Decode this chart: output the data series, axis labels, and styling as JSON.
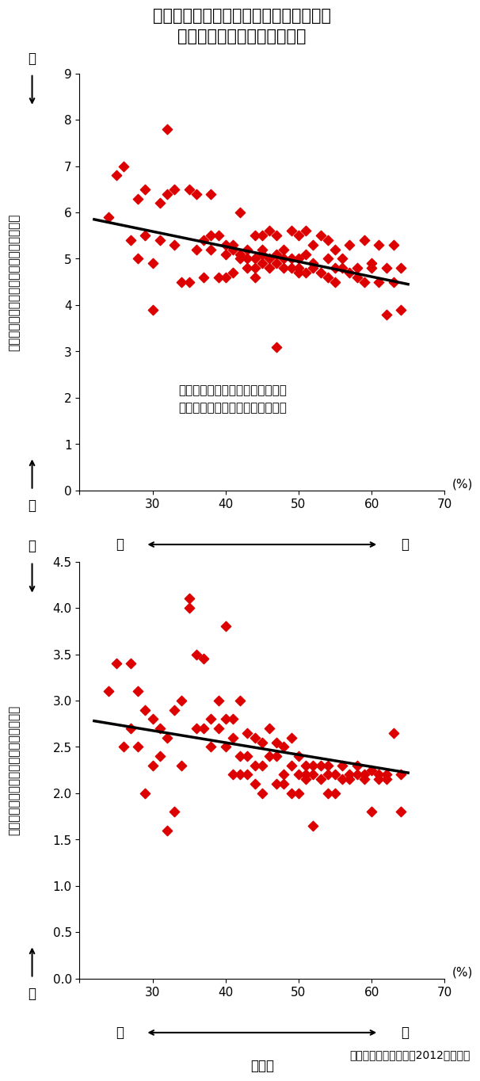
{
  "title": "ソーシャルキャピタル（信頼感）が高い\n行政区ほど健康状態がよい！",
  "title_fontsize": 16,
  "scatter1_x": [
    24,
    25,
    26,
    27,
    28,
    28,
    29,
    29,
    30,
    30,
    31,
    31,
    32,
    32,
    33,
    33,
    34,
    35,
    35,
    36,
    36,
    37,
    37,
    38,
    38,
    38,
    39,
    39,
    40,
    40,
    40,
    41,
    41,
    41,
    42,
    42,
    42,
    43,
    43,
    43,
    44,
    44,
    44,
    44,
    45,
    45,
    45,
    45,
    46,
    46,
    46,
    47,
    47,
    47,
    47,
    48,
    48,
    48,
    49,
    49,
    49,
    50,
    50,
    50,
    50,
    51,
    51,
    51,
    52,
    52,
    52,
    53,
    53,
    54,
    54,
    54,
    55,
    55,
    55,
    56,
    56,
    57,
    57,
    58,
    58,
    59,
    59,
    60,
    60,
    61,
    61,
    62,
    62,
    63,
    63,
    64,
    64
  ],
  "scatter1_y": [
    5.9,
    6.8,
    7.0,
    5.4,
    6.3,
    5.0,
    6.5,
    5.5,
    3.9,
    4.9,
    6.2,
    5.4,
    7.8,
    6.4,
    6.5,
    5.3,
    4.5,
    6.5,
    4.5,
    6.4,
    5.2,
    5.4,
    4.6,
    6.4,
    5.5,
    5.2,
    5.5,
    4.6,
    5.3,
    5.1,
    4.6,
    5.2,
    5.3,
    4.7,
    6.0,
    5.1,
    5.0,
    5.2,
    5.0,
    4.8,
    5.5,
    5.0,
    4.8,
    4.6,
    5.5,
    5.2,
    5.1,
    4.9,
    5.6,
    5.0,
    4.8,
    5.5,
    5.1,
    4.9,
    3.1,
    5.2,
    5.0,
    4.8,
    5.6,
    5.0,
    4.8,
    5.5,
    5.0,
    4.8,
    4.7,
    5.6,
    5.1,
    4.7,
    5.3,
    4.9,
    4.8,
    5.5,
    4.7,
    5.4,
    5.0,
    4.6,
    5.2,
    4.8,
    4.5,
    5.0,
    4.8,
    5.3,
    4.7,
    4.8,
    4.6,
    5.4,
    4.5,
    4.9,
    4.8,
    5.3,
    4.5,
    4.8,
    3.8,
    5.3,
    4.5,
    4.8,
    3.9
  ],
  "scatter1_trend_x": [
    22,
    65
  ],
  "scatter1_trend_y": [
    5.85,
    4.45
  ],
  "scatter2_x": [
    24,
    25,
    26,
    27,
    27,
    28,
    28,
    29,
    29,
    30,
    30,
    31,
    31,
    32,
    32,
    33,
    33,
    34,
    34,
    35,
    35,
    36,
    36,
    37,
    37,
    38,
    38,
    39,
    39,
    40,
    40,
    40,
    41,
    41,
    41,
    42,
    42,
    42,
    43,
    43,
    43,
    44,
    44,
    44,
    45,
    45,
    45,
    46,
    46,
    47,
    47,
    47,
    48,
    48,
    48,
    49,
    49,
    49,
    50,
    50,
    50,
    51,
    51,
    51,
    52,
    52,
    52,
    53,
    53,
    54,
    54,
    54,
    55,
    55,
    56,
    56,
    57,
    57,
    58,
    58,
    59,
    59,
    60,
    60,
    61,
    61,
    62,
    62,
    63,
    64,
    64
  ],
  "scatter2_y": [
    3.1,
    3.4,
    2.5,
    2.7,
    3.4,
    2.5,
    3.1,
    2.0,
    2.9,
    2.3,
    2.8,
    2.4,
    2.7,
    1.6,
    2.6,
    1.8,
    2.9,
    3.0,
    2.3,
    4.1,
    4.0,
    3.5,
    2.7,
    3.45,
    2.7,
    2.8,
    2.5,
    3.0,
    2.7,
    2.8,
    3.8,
    2.5,
    2.8,
    2.6,
    2.2,
    3.0,
    2.4,
    2.2,
    2.65,
    2.4,
    2.2,
    2.6,
    2.3,
    2.1,
    2.55,
    2.3,
    2.0,
    2.7,
    2.4,
    2.55,
    2.4,
    2.1,
    2.5,
    2.2,
    2.1,
    2.6,
    2.3,
    2.0,
    2.4,
    2.2,
    2.0,
    2.3,
    2.2,
    2.15,
    2.3,
    2.2,
    1.65,
    2.3,
    2.15,
    2.3,
    2.2,
    2.0,
    2.2,
    2.0,
    2.3,
    2.15,
    2.2,
    2.15,
    2.3,
    2.2,
    2.2,
    2.15,
    2.25,
    1.8,
    2.2,
    2.15,
    2.2,
    2.15,
    2.65,
    1.8,
    2.2
  ],
  "scatter2_trend_x": [
    22,
    65
  ],
  "scatter2_trend_y": [
    2.78,
    2.22
  ],
  "scatter_color": "#dd0000",
  "trend_color": "#000000",
  "ylabel1_kanji": "抑うつの平均得点（低いほど状態がよい）",
  "ylabel1_colored": "抑うつ",
  "ylabel1_color": "#4472c4",
  "ylabel2_kanji": "虚弱の平均得点（低いほど状態がよい）",
  "ylabel2_colored": "虚弱",
  "ylabel2_color": "#dd0000",
  "xlabel_label": "信頼感",
  "xlim": [
    20,
    70
  ],
  "ylim1": [
    0,
    9
  ],
  "ylim1_ticks": [
    0,
    1,
    2,
    3,
    4,
    5,
    6,
    7,
    8,
    9
  ],
  "ylim2": [
    0.0,
    4.5
  ],
  "ylim2_ticks": [
    0.0,
    0.5,
    1.0,
    1.5,
    2.0,
    2.5,
    3.0,
    3.5,
    4.0,
    4.5
  ],
  "xticks": [
    20,
    30,
    40,
    50,
    60,
    70
  ],
  "annotation1": "横軸は行政区内で「一般的に人を\n信頼できる」と回答した人の割合",
  "source": "養父市高齢者健康調査2012より作成"
}
